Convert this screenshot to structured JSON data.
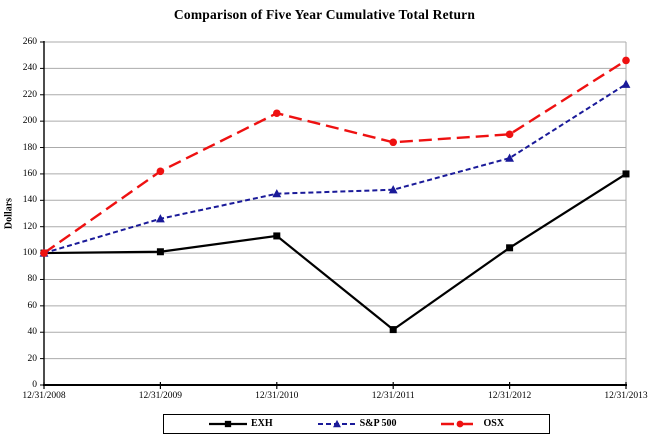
{
  "chart_data": {
    "type": "line",
    "title": "Comparison of Five Year Cumulative Total Return",
    "ylabel": "Dollars",
    "xlabel": "",
    "categories": [
      "12/31/2008",
      "12/31/2009",
      "12/31/2010",
      "12/31/2011",
      "12/31/2012",
      "12/31/2013"
    ],
    "ylim": [
      0,
      260
    ],
    "y_ticks": [
      0,
      20,
      40,
      60,
      80,
      100,
      120,
      140,
      160,
      180,
      200,
      220,
      240,
      260
    ],
    "grid": true,
    "grid_color": "#ababab",
    "axis_color": "#000000",
    "legend_position": "bottom",
    "series": [
      {
        "name": "EXH",
        "color": "#000000",
        "dash": "",
        "marker": "square",
        "width": 2.2,
        "values": [
          100,
          101,
          113,
          42,
          104,
          160
        ]
      },
      {
        "name": "S&P 500",
        "color": "#1a1a99",
        "dash": "5,3",
        "marker": "triangle",
        "width": 2.0,
        "values": [
          100,
          126,
          145,
          148,
          172,
          228
        ]
      },
      {
        "name": "OSX",
        "color": "#ee1111",
        "dash": "13,6",
        "marker": "circle",
        "width": 2.4,
        "values": [
          100,
          162,
          206,
          184,
          190,
          246
        ]
      }
    ]
  }
}
